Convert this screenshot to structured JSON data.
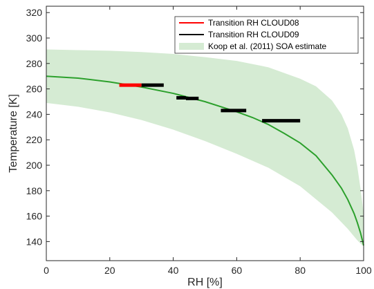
{
  "chart_data": {
    "type": "line",
    "title": "",
    "xlabel": "RH [%]",
    "ylabel": "Temperature [K]",
    "xlim": [
      0,
      100
    ],
    "ylim": [
      125,
      325
    ],
    "xticks": [
      0,
      20,
      40,
      60,
      80,
      100
    ],
    "yticks": [
      140,
      160,
      180,
      200,
      220,
      240,
      260,
      280,
      300,
      320
    ],
    "grid": false,
    "legend_position": "top-right",
    "colors": {
      "cloud08": "#ff0000",
      "cloud09": "#000000",
      "soa_curve": "#2ca02c",
      "soa_band": "#d5ebd3"
    },
    "legend": [
      {
        "label": "Transition RH CLOUD08",
        "kind": "line",
        "color": "#ff0000"
      },
      {
        "label": "Transition RH CLOUD09",
        "kind": "line",
        "color": "#000000"
      },
      {
        "label": "Koop et al. (2011) SOA estimate",
        "kind": "patch",
        "color": "#d5ebd3"
      }
    ],
    "transition_cloud08": [
      {
        "rh_start": 23,
        "rh_end": 30,
        "temperature": 263
      }
    ],
    "transition_cloud09": [
      {
        "rh_start": 30,
        "rh_end": 37,
        "temperature": 263
      },
      {
        "rh_start": 41,
        "rh_end": 44,
        "temperature": 253
      },
      {
        "rh_start": 44,
        "rh_end": 48,
        "temperature": 252.5
      },
      {
        "rh_start": 55,
        "rh_end": 63,
        "temperature": 243
      },
      {
        "rh_start": 68,
        "rh_end": 80,
        "temperature": 235
      }
    ],
    "soa_estimate_curve": {
      "rh": [
        0,
        10,
        20,
        30,
        40,
        50,
        60,
        65,
        70,
        75,
        80,
        85,
        90,
        93,
        95,
        97,
        98,
        99,
        100
      ],
      "temperature": [
        270,
        268.5,
        265.5,
        261.5,
        256.5,
        250,
        242,
        237.5,
        232,
        225,
        217.5,
        207.5,
        192.5,
        182,
        173,
        162,
        155,
        147,
        137
      ]
    },
    "soa_estimate_band_upper": {
      "rh": [
        0,
        10,
        20,
        30,
        40,
        50,
        60,
        70,
        80,
        85,
        90,
        93,
        95,
        97,
        98,
        99,
        100
      ],
      "temperature": [
        291,
        290.5,
        290,
        289,
        287.5,
        285,
        282,
        277,
        268,
        262,
        251,
        240,
        229,
        212,
        199,
        182,
        162
      ]
    },
    "soa_estimate_band_lower": {
      "rh": [
        0,
        10,
        20,
        30,
        40,
        50,
        60,
        70,
        80,
        90,
        95,
        98,
        100
      ],
      "temperature": [
        249,
        246,
        241.5,
        235.5,
        228,
        219,
        209,
        198,
        183.5,
        163,
        150,
        141,
        136
      ]
    }
  }
}
